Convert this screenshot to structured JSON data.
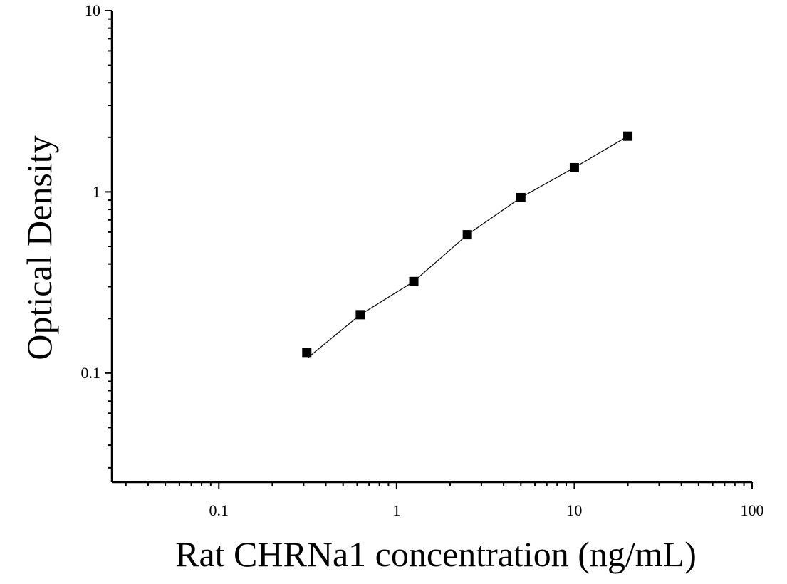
{
  "chart_data": {
    "type": "scatter",
    "title": "",
    "xlabel": "Rat CHRNa1 concentration (ng/mL)",
    "ylabel": "Optical Density",
    "x_scale": "log",
    "y_scale": "log",
    "xlim": [
      0.025,
      100
    ],
    "ylim": [
      0.025,
      10
    ],
    "x_ticks": [
      {
        "value": 0.1,
        "label": "0.1"
      },
      {
        "value": 1,
        "label": "1"
      },
      {
        "value": 10,
        "label": "10"
      },
      {
        "value": 100,
        "label": "100"
      }
    ],
    "y_ticks": [
      {
        "value": 0.1,
        "label": "0.1"
      },
      {
        "value": 1,
        "label": "1"
      },
      {
        "value": 10,
        "label": "10"
      }
    ],
    "grid": false,
    "legend": "none",
    "series": [
      {
        "x": [
          0.3125,
          0.625,
          1.25,
          2.5,
          5,
          10,
          20
        ],
        "y": [
          0.13,
          0.21,
          0.32,
          0.58,
          0.93,
          1.36,
          2.03
        ],
        "marker": "square",
        "fit_line": true
      }
    ],
    "colors": {
      "marker": "#000000",
      "line": "#000000",
      "axis": "#000000"
    }
  }
}
